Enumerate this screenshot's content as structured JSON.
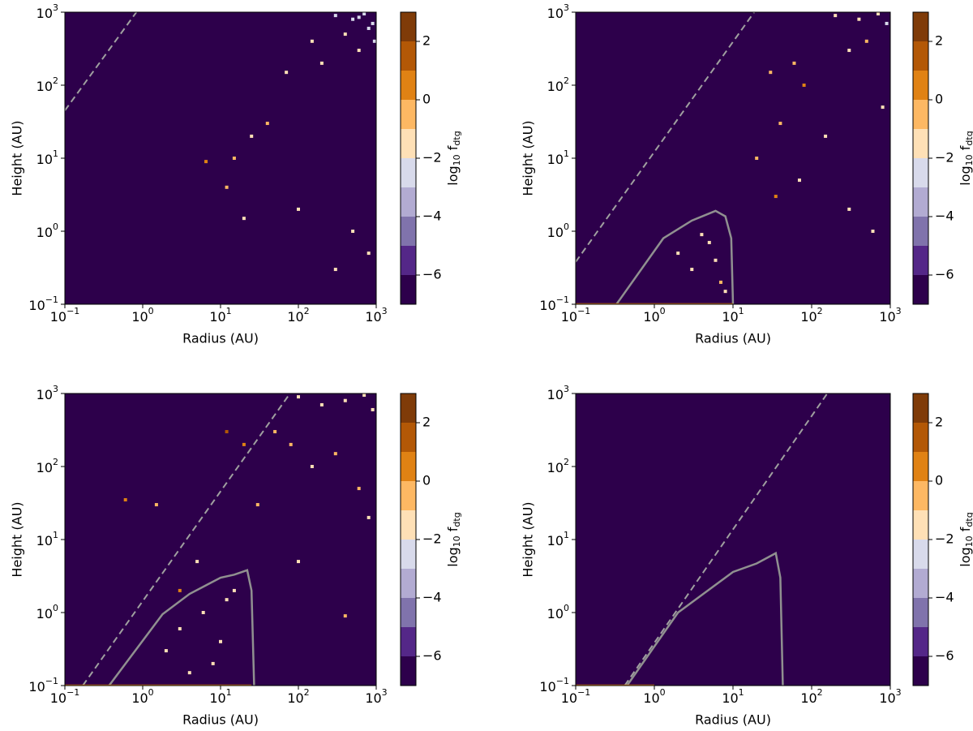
{
  "chart_data": [
    {
      "type": "heatmap",
      "xlabel": "Radius (AU)",
      "ylabel": "Height (AU)",
      "log_x": true,
      "log_y": true,
      "background": "#2d004b",
      "xlim": [
        0.1,
        1000
      ],
      "ylim": [
        0.1,
        1000
      ],
      "xticks": [
        {
          "value": 0.1,
          "label": "10",
          "exponent": "−1"
        },
        {
          "value": 1,
          "label": "10",
          "exponent": "0"
        },
        {
          "value": 10,
          "label": "10",
          "exponent": "1"
        },
        {
          "value": 100,
          "label": "10",
          "exponent": "2"
        },
        {
          "value": 1000,
          "label": "10",
          "exponent": "3"
        }
      ],
      "yticks": [
        {
          "value": 0.1,
          "label": "10",
          "exponent": "−1"
        },
        {
          "value": 1,
          "label": "10",
          "exponent": "0"
        },
        {
          "value": 10,
          "label": "10",
          "exponent": "1"
        },
        {
          "value": 100,
          "label": "10",
          "exponent": "2"
        },
        {
          "value": 1000,
          "label": "10",
          "exponent": "3"
        }
      ],
      "lines": [
        {
          "style": "dashed",
          "color": "#a0a0a0",
          "x": [
            0.1,
            0.83
          ],
          "y": [
            45,
            1000
          ]
        }
      ],
      "cells": {
        "x": [
          300,
          500,
          700,
          900,
          400,
          600,
          800,
          200,
          150,
          70,
          40,
          25,
          15,
          6.5,
          12,
          20,
          100,
          300,
          500,
          800,
          950,
          600
        ],
        "y": [
          900,
          800,
          950,
          700,
          500,
          300,
          600,
          200,
          400,
          150,
          30,
          20,
          10,
          9,
          4,
          1.5,
          2,
          0.3,
          1,
          0.5,
          400,
          850
        ],
        "values": [
          -2.5,
          -2.5,
          -2.5,
          -2.5,
          -1.5,
          -1.5,
          -2.5,
          -1.5,
          -1.5,
          -1.5,
          -0.5,
          -1.5,
          -0.5,
          0.5,
          -0.5,
          -1.5,
          -1.5,
          -1.5,
          -1.5,
          -1.5,
          -2.5,
          -2.5
        ]
      },
      "colorbar": {
        "label": [
          "log",
          "10",
          " f",
          "dtg"
        ],
        "levels": [
          -7,
          -6,
          -5,
          -4,
          -3,
          -2,
          -1,
          0,
          1,
          2,
          3
        ],
        "colors": [
          "#2d004b",
          "#542788",
          "#8073ac",
          "#b2abd2",
          "#d8daeb",
          "#fee0b6",
          "#fdb863",
          "#e08214",
          "#b35806",
          "#7f3b08"
        ],
        "ticks": [
          {
            "value": -6,
            "label": "−6"
          },
          {
            "value": -4,
            "label": "−4"
          },
          {
            "value": -2,
            "label": "−2"
          },
          0,
          2
        ]
      }
    },
    {
      "type": "heatmap",
      "xlabel": "Radius (AU)",
      "ylabel": "Height (AU)",
      "log_x": true,
      "log_y": true,
      "background": "#2d004b",
      "xlim": [
        0.1,
        1000
      ],
      "ylim": [
        0.1,
        1000
      ],
      "xticks": [
        {
          "value": 0.1,
          "label": "10",
          "exponent": "−1"
        },
        {
          "value": 1,
          "label": "10",
          "exponent": "0"
        },
        {
          "value": 10,
          "label": "10",
          "exponent": "1"
        },
        {
          "value": 100,
          "label": "10",
          "exponent": "2"
        },
        {
          "value": 1000,
          "label": "10",
          "exponent": "3"
        }
      ],
      "yticks": [
        {
          "value": 0.1,
          "label": "10",
          "exponent": "−1"
        },
        {
          "value": 1,
          "label": "10",
          "exponent": "0"
        },
        {
          "value": 10,
          "label": "10",
          "exponent": "1"
        },
        {
          "value": 100,
          "label": "10",
          "exponent": "2"
        },
        {
          "value": 1000,
          "label": "10",
          "exponent": "3"
        }
      ],
      "lines": [
        {
          "style": "dashed",
          "color": "#a0a0a0",
          "x": [
            0.1,
            18.6
          ],
          "y": [
            0.38,
            1000
          ]
        },
        {
          "style": "solid",
          "color": "#909090",
          "x": [
            0.33,
            1.3,
            3,
            6,
            8,
            9.5,
            10
          ],
          "y": [
            0.1,
            0.8,
            1.4,
            1.9,
            1.6,
            0.8,
            0.1
          ]
        },
        {
          "style": "solid",
          "color": "#e08214",
          "x": [
            0.1,
            10
          ],
          "y": [
            0.1,
            0.1
          ]
        }
      ],
      "cells": {
        "x": [
          200,
          400,
          700,
          900,
          60,
          30,
          80,
          300,
          500,
          800,
          150,
          40,
          20,
          35,
          70,
          300,
          600,
          2,
          3,
          5,
          7,
          8,
          4,
          6
        ],
        "y": [
          900,
          800,
          950,
          700,
          200,
          150,
          100,
          300,
          400,
          50,
          20,
          30,
          10,
          3,
          5,
          2,
          1,
          0.5,
          0.3,
          0.7,
          0.2,
          0.15,
          0.9,
          0.4
        ],
        "values": [
          -1.5,
          -1.5,
          -1.5,
          -2.5,
          -0.5,
          -0.5,
          0.5,
          -1.5,
          -0.5,
          -1.5,
          -1.5,
          -0.5,
          -0.5,
          0.5,
          -1.5,
          -1.5,
          -1.5,
          -1.5,
          -1.5,
          -1.5,
          -0.5,
          -1.5,
          -1.5,
          -1.5
        ]
      },
      "colorbar": {
        "label": [
          "log",
          "10",
          " f",
          "dtg"
        ],
        "levels": [
          -7,
          -6,
          -5,
          -4,
          -3,
          -2,
          -1,
          0,
          1,
          2,
          3
        ],
        "colors": [
          "#2d004b",
          "#542788",
          "#8073ac",
          "#b2abd2",
          "#d8daeb",
          "#fee0b6",
          "#fdb863",
          "#e08214",
          "#b35806",
          "#7f3b08"
        ],
        "ticks": [
          {
            "value": -6,
            "label": "−6"
          },
          {
            "value": -4,
            "label": "−4"
          },
          {
            "value": -2,
            "label": "−2"
          },
          0,
          2
        ]
      }
    },
    {
      "type": "heatmap",
      "xlabel": "Radius (AU)",
      "ylabel": "Height (AU)",
      "log_x": true,
      "log_y": true,
      "background": "#2d004b",
      "xlim": [
        0.1,
        1000
      ],
      "ylim": [
        0.1,
        1000
      ],
      "xticks": [
        {
          "value": 0.1,
          "label": "10",
          "exponent": "−1"
        },
        {
          "value": 1,
          "label": "10",
          "exponent": "0"
        },
        {
          "value": 10,
          "label": "10",
          "exponent": "1"
        },
        {
          "value": 100,
          "label": "10",
          "exponent": "2"
        },
        {
          "value": 1000,
          "label": "10",
          "exponent": "3"
        }
      ],
      "yticks": [
        {
          "value": 0.1,
          "label": "10",
          "exponent": "−1"
        },
        {
          "value": 1,
          "label": "10",
          "exponent": "0"
        },
        {
          "value": 10,
          "label": "10",
          "exponent": "1"
        },
        {
          "value": 100,
          "label": "10",
          "exponent": "2"
        },
        {
          "value": 1000,
          "label": "10",
          "exponent": "3"
        }
      ],
      "lines": [
        {
          "style": "dashed",
          "color": "#a0a0a0",
          "x": [
            0.17,
            78
          ],
          "y": [
            0.1,
            1000
          ]
        },
        {
          "style": "solid",
          "color": "#909090",
          "x": [
            0.37,
            1.8,
            4,
            10,
            15,
            22,
            25,
            27
          ],
          "y": [
            0.1,
            0.95,
            1.8,
            3,
            3.3,
            3.8,
            2,
            0.1
          ]
        },
        {
          "style": "solid",
          "color": "#e08214",
          "x": [
            0.1,
            25
          ],
          "y": [
            0.1,
            0.1
          ]
        }
      ],
      "cells": {
        "x": [
          100,
          200,
          400,
          700,
          900,
          50,
          80,
          150,
          300,
          600,
          20,
          30,
          12,
          5,
          3,
          400,
          2,
          3,
          6,
          10,
          15,
          8,
          4,
          12,
          0.6,
          1.5,
          100,
          800
        ],
        "y": [
          900,
          700,
          800,
          950,
          600,
          300,
          200,
          100,
          150,
          50,
          200,
          30,
          300,
          5,
          2,
          0.9,
          0.3,
          0.6,
          1,
          0.4,
          2,
          0.2,
          0.15,
          1.5,
          35,
          30,
          5,
          20
        ],
        "values": [
          -1.5,
          -1.5,
          -1.5,
          -1.5,
          -1.5,
          -0.5,
          -0.5,
          -1.5,
          -0.5,
          -0.5,
          0.5,
          -0.5,
          1.5,
          -1.5,
          0.5,
          -0.5,
          -1.5,
          -1.5,
          -1.5,
          -1.5,
          -1.5,
          -1.5,
          -1.5,
          -1.5,
          0.5,
          -0.5,
          -1.5,
          -1.5
        ]
      },
      "colorbar": {
        "label": [
          "log",
          "10",
          " f",
          "dtg"
        ],
        "levels": [
          -7,
          -6,
          -5,
          -4,
          -3,
          -2,
          -1,
          0,
          1,
          2,
          3
        ],
        "colors": [
          "#2d004b",
          "#542788",
          "#8073ac",
          "#b2abd2",
          "#d8daeb",
          "#fee0b6",
          "#fdb863",
          "#e08214",
          "#b35806",
          "#7f3b08"
        ],
        "ticks": [
          {
            "value": -6,
            "label": "−6"
          },
          {
            "value": -4,
            "label": "−4"
          },
          {
            "value": -2,
            "label": "−2"
          },
          0,
          2
        ]
      }
    },
    {
      "type": "heatmap",
      "xlabel": "Radius (AU)",
      "ylabel": "Height (AU)",
      "log_x": true,
      "log_y": true,
      "background": "#2d004b",
      "xlim": [
        0.1,
        1000
      ],
      "ylim": [
        0.1,
        1000
      ],
      "xticks": [
        {
          "value": 0.1,
          "label": "10",
          "exponent": "−1"
        },
        {
          "value": 1,
          "label": "10",
          "exponent": "0"
        },
        {
          "value": 10,
          "label": "10",
          "exponent": "1"
        },
        {
          "value": 100,
          "label": "10",
          "exponent": "2"
        },
        {
          "value": 1000,
          "label": "10",
          "exponent": "3"
        }
      ],
      "yticks": [
        {
          "value": 0.1,
          "label": "10",
          "exponent": "−1"
        },
        {
          "value": 1,
          "label": "10",
          "exponent": "0"
        },
        {
          "value": 10,
          "label": "10",
          "exponent": "1"
        },
        {
          "value": 100,
          "label": "10",
          "exponent": "2"
        },
        {
          "value": 1000,
          "label": "10",
          "exponent": "3"
        }
      ],
      "lines": [
        {
          "style": "dashed",
          "color": "#a0a0a0",
          "x": [
            0.42,
            158
          ],
          "y": [
            0.1,
            1000
          ]
        },
        {
          "style": "solid",
          "color": "#909090",
          "x": [
            0.45,
            2,
            10,
            20,
            35,
            40,
            43
          ],
          "y": [
            0.1,
            1,
            3.6,
            4.7,
            6.5,
            3,
            0.1
          ]
        },
        {
          "style": "solid",
          "color": "#e08214",
          "x": [
            0.1,
            1
          ],
          "y": [
            0.1,
            0.1
          ]
        }
      ],
      "colorbar": {
        "label": [
          "log",
          "10",
          " f",
          "dtg"
        ],
        "levels": [
          -7,
          -6,
          -5,
          -4,
          -3,
          -2,
          -1,
          0,
          1,
          2,
          3
        ],
        "colors": [
          "#2d004b",
          "#542788",
          "#8073ac",
          "#b2abd2",
          "#d8daeb",
          "#fee0b6",
          "#fdb863",
          "#e08214",
          "#b35806",
          "#7f3b08"
        ],
        "ticks": [
          {
            "value": -6,
            "label": "−6"
          },
          {
            "value": -4,
            "label": "−4"
          },
          {
            "value": -2,
            "label": "−2"
          },
          0,
          2
        ]
      }
    }
  ]
}
